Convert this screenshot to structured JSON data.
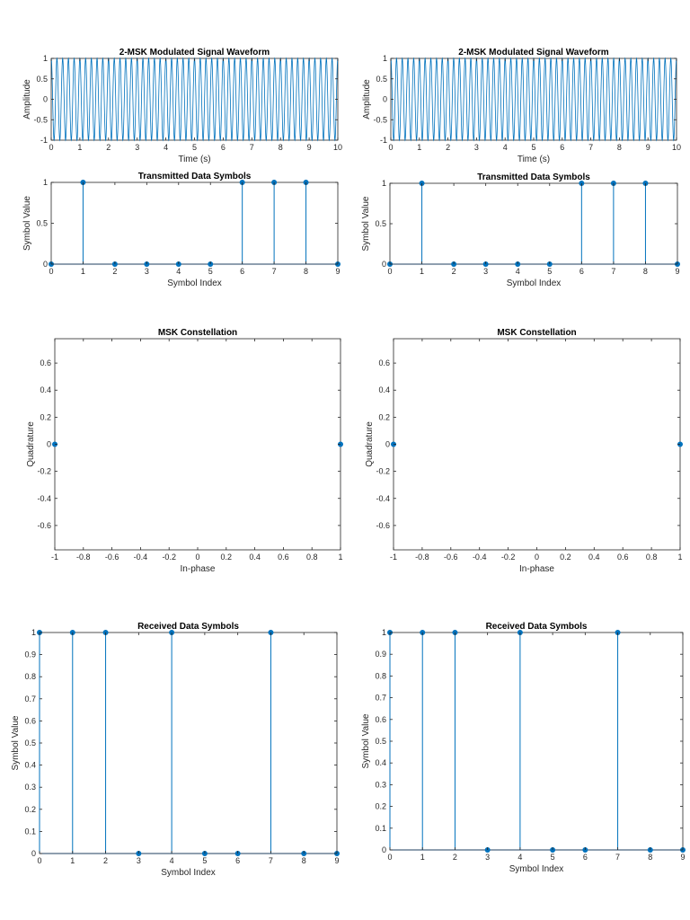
{
  "chart_data": [
    {
      "type": "line",
      "title": "2-MSK Modulated Signal Waveform",
      "xlabel": "Time (s)",
      "ylabel": "Amplitude",
      "xlim": [
        0,
        10
      ],
      "ylim": [
        -1,
        1
      ],
      "xticks": [
        "0",
        "1",
        "2",
        "3",
        "4",
        "5",
        "6",
        "7",
        "8",
        "9",
        "10"
      ],
      "yticks": [
        "-1",
        "-0.5",
        "0",
        "0.5",
        "1"
      ],
      "cycles_per_second": 5,
      "color": "#0072BD",
      "grid": false
    },
    {
      "type": "stem",
      "title": "Transmitted Data Symbols",
      "xlabel": "Symbol Index",
      "ylabel": "Symbol Value",
      "x": [
        0,
        1,
        2,
        3,
        4,
        5,
        6,
        7,
        8,
        9
      ],
      "values": [
        0,
        1,
        0,
        0,
        0,
        0,
        1,
        1,
        1,
        0
      ],
      "xlim": [
        0,
        9
      ],
      "ylim": [
        0,
        1
      ],
      "xticks": [
        "0",
        "1",
        "2",
        "3",
        "4",
        "5",
        "6",
        "7",
        "8",
        "9"
      ],
      "yticks": [
        "0",
        "0.5",
        "1"
      ],
      "color": "#0072BD",
      "grid": false
    },
    {
      "type": "scatter",
      "title": "MSK Constellation",
      "xlabel": "In-phase",
      "ylabel": "Quadrature",
      "points": [
        [
          -1,
          0
        ],
        [
          1,
          0
        ]
      ],
      "xlim": [
        -1,
        1
      ],
      "ylim": [
        -0.78,
        0.78
      ],
      "xticks": [
        "-1",
        "-0.8",
        "-0.6",
        "-0.4",
        "-0.2",
        "0",
        "0.2",
        "0.4",
        "0.6",
        "0.8",
        "1"
      ],
      "yticks": [
        "-0.6",
        "-0.4",
        "-0.2",
        "0",
        "0.2",
        "0.4",
        "0.6"
      ],
      "color": "#0072BD",
      "grid": false
    },
    {
      "type": "stem",
      "title": "Received Data Symbols",
      "xlabel": "Symbol Index",
      "ylabel": "Symbol Value",
      "x": [
        0,
        1,
        2,
        3,
        4,
        5,
        6,
        7,
        8,
        9
      ],
      "values": [
        1,
        1,
        1,
        0,
        1,
        0,
        0,
        1,
        0,
        0
      ],
      "xlim": [
        0,
        9
      ],
      "ylim": [
        0,
        1
      ],
      "xticks": [
        "0",
        "1",
        "2",
        "3",
        "4",
        "5",
        "6",
        "7",
        "8",
        "9"
      ],
      "yticks": [
        "0",
        "0.1",
        "0.2",
        "0.3",
        "0.4",
        "0.5",
        "0.6",
        "0.7",
        "0.8",
        "0.9",
        "1"
      ],
      "color": "#0072BD",
      "grid": false
    },
    {
      "type": "line",
      "title": "2-MSK Modulated Signal Waveform",
      "xlabel": "Time (s)",
      "ylabel": "Amplitude",
      "xlim": [
        0,
        10
      ],
      "ylim": [
        -1,
        1
      ],
      "xticks": [
        "0",
        "1",
        "2",
        "3",
        "4",
        "5",
        "6",
        "7",
        "8",
        "9",
        "10"
      ],
      "yticks": [
        "-1",
        "-0.5",
        "0",
        "0.5",
        "1"
      ],
      "cycles_per_second": 5,
      "color": "#0072BD",
      "grid": false
    },
    {
      "type": "stem",
      "title": "Transmitted Data Symbols",
      "xlabel": "Symbol Index",
      "ylabel": "Symbol Value",
      "x": [
        0,
        1,
        2,
        3,
        4,
        5,
        6,
        7,
        8,
        9
      ],
      "values": [
        0,
        1,
        0,
        0,
        0,
        0,
        1,
        1,
        1,
        0
      ],
      "xlim": [
        0,
        9
      ],
      "ylim": [
        0,
        1
      ],
      "xticks": [
        "0",
        "1",
        "2",
        "3",
        "4",
        "5",
        "6",
        "7",
        "8",
        "9"
      ],
      "yticks": [
        "0",
        "0.5",
        "1"
      ],
      "color": "#0072BD",
      "grid": false
    },
    {
      "type": "scatter",
      "title": "MSK Constellation",
      "xlabel": "In-phase",
      "ylabel": "Quadrature",
      "points": [
        [
          -1,
          0
        ],
        [
          1,
          0
        ]
      ],
      "xlim": [
        -1,
        1
      ],
      "ylim": [
        -0.78,
        0.78
      ],
      "xticks": [
        "-1",
        "-0.8",
        "-0.6",
        "-0.4",
        "-0.2",
        "0",
        "0.2",
        "0.4",
        "0.6",
        "0.8",
        "1"
      ],
      "yticks": [
        "-0.6",
        "-0.4",
        "-0.2",
        "0",
        "0.2",
        "0.4",
        "0.6"
      ],
      "color": "#0072BD",
      "grid": false
    },
    {
      "type": "stem",
      "title": "Received Data Symbols",
      "xlabel": "Symbol Index",
      "ylabel": "Symbol Value",
      "x": [
        0,
        1,
        2,
        3,
        4,
        5,
        6,
        7,
        8,
        9
      ],
      "values": [
        1,
        1,
        1,
        0,
        1,
        0,
        0,
        1,
        0,
        0
      ],
      "xlim": [
        0,
        9
      ],
      "ylim": [
        0,
        1
      ],
      "xticks": [
        "0",
        "1",
        "2",
        "3",
        "4",
        "5",
        "6",
        "7",
        "8",
        "9"
      ],
      "yticks": [
        "0",
        "0.1",
        "0.2",
        "0.3",
        "0.4",
        "0.5",
        "0.6",
        "0.7",
        "0.8",
        "0.9",
        "1"
      ],
      "color": "#0072BD",
      "grid": false
    }
  ]
}
